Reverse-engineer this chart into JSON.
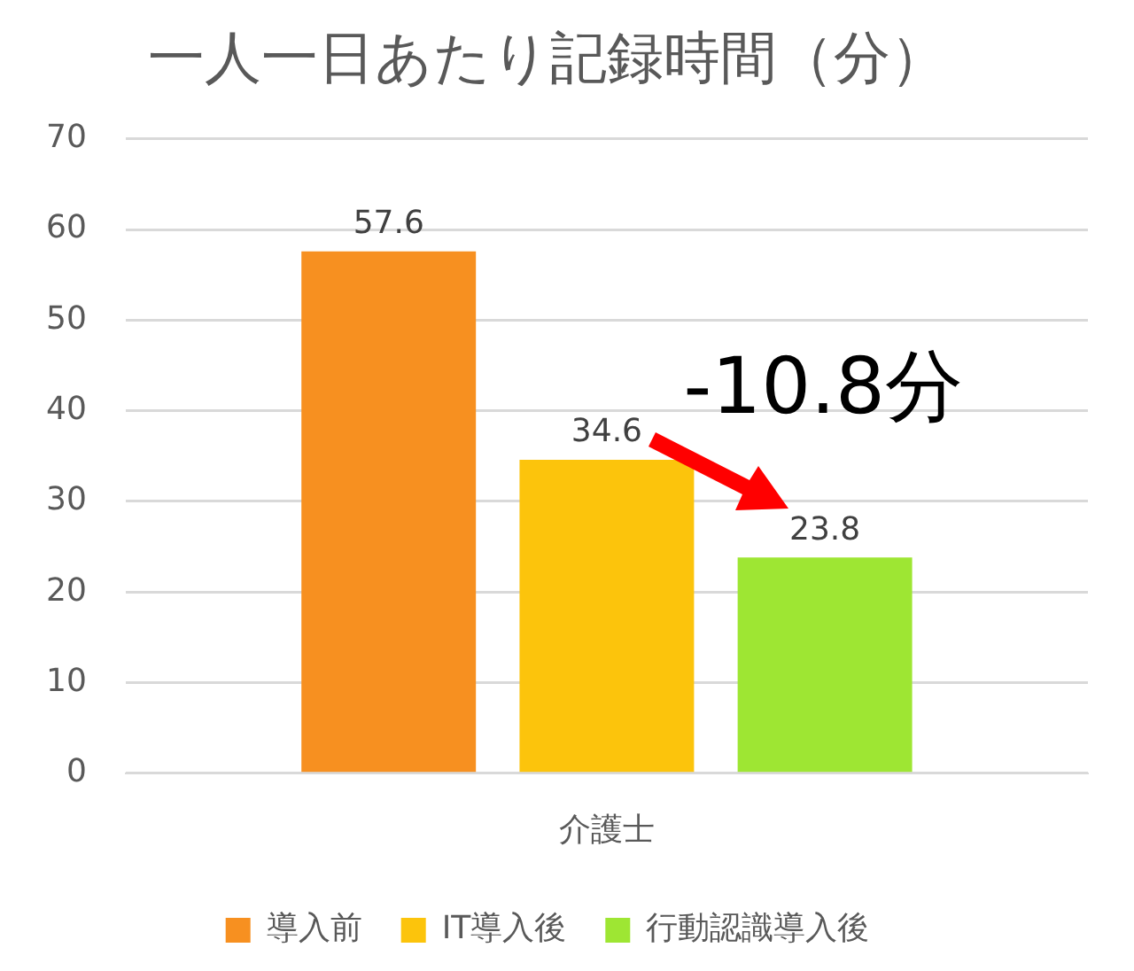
{
  "chart_data": {
    "type": "bar",
    "title": "一人一日あたり記録時間（分）",
    "categories": [
      "介護士"
    ],
    "series": [
      {
        "name": "導入前",
        "color": "#f79020",
        "values": [
          57.6
        ]
      },
      {
        "name": "IT導入後",
        "color": "#fcc40c",
        "values": [
          34.6
        ]
      },
      {
        "name": "行動認識導入後",
        "color": "#9ee633",
        "values": [
          23.8
        ]
      }
    ],
    "ylim": [
      0,
      70
    ],
    "yticks": [
      0,
      10,
      20,
      30,
      40,
      50,
      60,
      70
    ],
    "grid": "y",
    "legend": "bottom",
    "data_labels": true,
    "annotations": [
      "-10.8分"
    ]
  }
}
